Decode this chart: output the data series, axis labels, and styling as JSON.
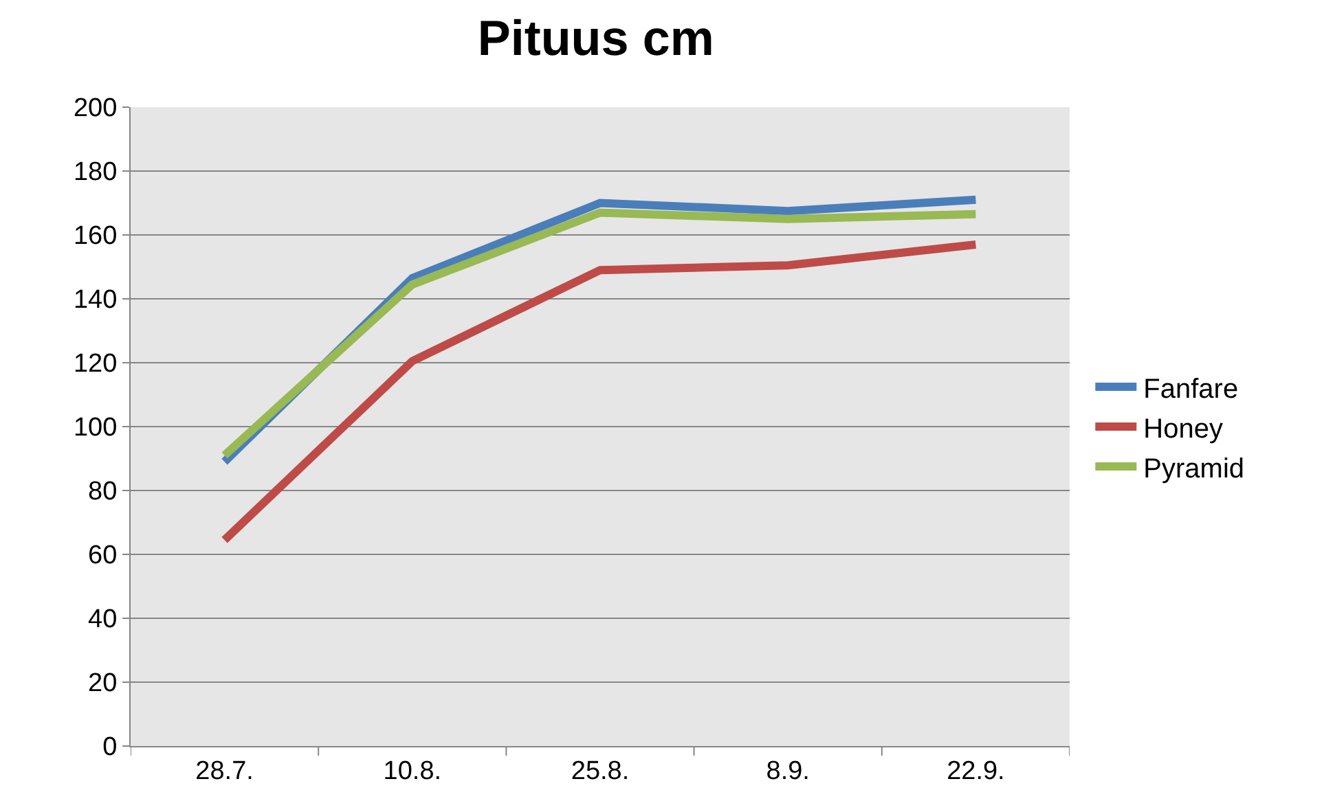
{
  "chart_data": {
    "type": "line",
    "title": "Pituus cm",
    "categories": [
      "28.7.",
      "10.8.",
      "25.8.",
      "8.9.",
      "22.9."
    ],
    "series": [
      {
        "name": "Fanfare",
        "color": "#4a7ebb",
        "values": [
          89,
          146.5,
          170,
          167.5,
          171
        ]
      },
      {
        "name": "Honey",
        "color": "#be4b48",
        "values": [
          64.5,
          120.5,
          149,
          150.5,
          157
        ]
      },
      {
        "name": "Pyramid",
        "color": "#98b954",
        "values": [
          91,
          144.5,
          167,
          165,
          166.5
        ]
      }
    ],
    "ylim": [
      0,
      200
    ],
    "yticks": [
      0,
      20,
      40,
      60,
      80,
      100,
      120,
      140,
      160,
      180,
      200
    ],
    "grid": "y",
    "legend": "right",
    "marker": "none",
    "line_style": "solid"
  }
}
